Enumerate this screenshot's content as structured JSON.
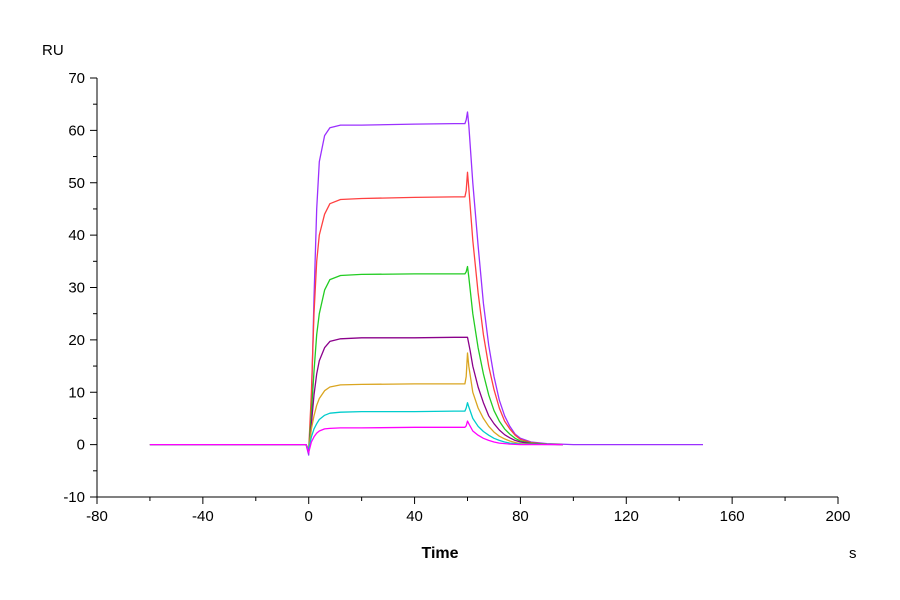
{
  "chart_data": {
    "type": "line",
    "xlabel": "Time",
    "xunit": "s",
    "yunit": "RU",
    "xlim": [
      -80,
      200
    ],
    "ylim": [
      -10,
      70
    ],
    "xticks": [
      -80,
      -40,
      0,
      40,
      80,
      120,
      160,
      200
    ],
    "yticks": [
      -10,
      0,
      10,
      20,
      30,
      40,
      50,
      60,
      70
    ],
    "grid": false,
    "legend": "none",
    "series": [
      {
        "color": "#9b30ff",
        "points": [
          [
            -60,
            0
          ],
          [
            -1,
            0
          ],
          [
            0,
            -2
          ],
          [
            1,
            8
          ],
          [
            2,
            28
          ],
          [
            3,
            45
          ],
          [
            4,
            54
          ],
          [
            6,
            59
          ],
          [
            8,
            60.5
          ],
          [
            12,
            61
          ],
          [
            20,
            61
          ],
          [
            40,
            61.2
          ],
          [
            55,
            61.3
          ],
          [
            59,
            61.3
          ],
          [
            59.5,
            62
          ],
          [
            60,
            63.5
          ],
          [
            60.5,
            61
          ],
          [
            62,
            50
          ],
          [
            64,
            38
          ],
          [
            66,
            27
          ],
          [
            68,
            19
          ],
          [
            70,
            13
          ],
          [
            72,
            8.5
          ],
          [
            74,
            5.5
          ],
          [
            76,
            3.5
          ],
          [
            78,
            2
          ],
          [
            80,
            1.2
          ],
          [
            84,
            0.5
          ],
          [
            90,
            0.2
          ],
          [
            100,
            0
          ],
          [
            149,
            0
          ]
        ]
      },
      {
        "color": "#ff4040",
        "points": [
          [
            -60,
            0
          ],
          [
            -1,
            0
          ],
          [
            0,
            -1
          ],
          [
            1,
            10
          ],
          [
            2,
            25
          ],
          [
            3,
            35
          ],
          [
            4,
            40
          ],
          [
            6,
            44
          ],
          [
            8,
            46
          ],
          [
            12,
            46.8
          ],
          [
            20,
            47
          ],
          [
            40,
            47.2
          ],
          [
            55,
            47.3
          ],
          [
            59,
            47.3
          ],
          [
            59.5,
            48.5
          ],
          [
            60,
            52
          ],
          [
            60.5,
            49
          ],
          [
            62,
            39
          ],
          [
            64,
            29
          ],
          [
            66,
            21
          ],
          [
            68,
            15
          ],
          [
            70,
            10.5
          ],
          [
            72,
            7
          ],
          [
            74,
            4.5
          ],
          [
            76,
            3
          ],
          [
            78,
            1.8
          ],
          [
            80,
            1
          ],
          [
            84,
            0.4
          ],
          [
            90,
            0.1
          ],
          [
            96,
            0
          ]
        ]
      },
      {
        "color": "#22cc22",
        "points": [
          [
            -60,
            0
          ],
          [
            -1,
            0
          ],
          [
            0,
            -1
          ],
          [
            1,
            6
          ],
          [
            2,
            14
          ],
          [
            3,
            21
          ],
          [
            4,
            25
          ],
          [
            6,
            29.5
          ],
          [
            8,
            31.5
          ],
          [
            12,
            32.3
          ],
          [
            20,
            32.5
          ],
          [
            40,
            32.6
          ],
          [
            55,
            32.6
          ],
          [
            59,
            32.6
          ],
          [
            59.5,
            33
          ],
          [
            60,
            34
          ],
          [
            60.5,
            32
          ],
          [
            62,
            25
          ],
          [
            64,
            18.5
          ],
          [
            66,
            13.5
          ],
          [
            68,
            9.5
          ],
          [
            70,
            6.5
          ],
          [
            72,
            4.5
          ],
          [
            74,
            3
          ],
          [
            76,
            2
          ],
          [
            78,
            1.2
          ],
          [
            80,
            0.7
          ],
          [
            84,
            0.3
          ],
          [
            90,
            0.1
          ],
          [
            96,
            0
          ]
        ]
      },
      {
        "color": "#8b008b",
        "points": [
          [
            -60,
            0
          ],
          [
            -1,
            0
          ],
          [
            0,
            -1.5
          ],
          [
            1,
            4
          ],
          [
            2,
            9.5
          ],
          [
            3,
            13.5
          ],
          [
            4,
            16
          ],
          [
            6,
            18.5
          ],
          [
            8,
            19.7
          ],
          [
            12,
            20.2
          ],
          [
            20,
            20.4
          ],
          [
            40,
            20.4
          ],
          [
            55,
            20.5
          ],
          [
            59,
            20.5
          ],
          [
            60,
            20.5
          ],
          [
            61,
            18
          ],
          [
            62,
            15
          ],
          [
            64,
            11
          ],
          [
            66,
            8
          ],
          [
            68,
            5.5
          ],
          [
            70,
            4
          ],
          [
            72,
            2.8
          ],
          [
            74,
            1.9
          ],
          [
            76,
            1.3
          ],
          [
            78,
            0.8
          ],
          [
            80,
            0.5
          ],
          [
            84,
            0.2
          ],
          [
            90,
            0.1
          ],
          [
            96,
            0
          ]
        ]
      },
      {
        "color": "#daa520",
        "points": [
          [
            -60,
            0
          ],
          [
            -1,
            0
          ],
          [
            0,
            -1
          ],
          [
            1,
            3
          ],
          [
            2,
            5.5
          ],
          [
            3,
            7.5
          ],
          [
            4,
            8.8
          ],
          [
            6,
            10.3
          ],
          [
            8,
            11
          ],
          [
            12,
            11.4
          ],
          [
            20,
            11.5
          ],
          [
            40,
            11.6
          ],
          [
            55,
            11.6
          ],
          [
            59,
            11.6
          ],
          [
            59.5,
            13
          ],
          [
            60,
            17.5
          ],
          [
            60.5,
            15
          ],
          [
            62,
            10
          ],
          [
            64,
            7
          ],
          [
            66,
            5
          ],
          [
            68,
            3.5
          ],
          [
            70,
            2.4
          ],
          [
            72,
            1.6
          ],
          [
            74,
            1.1
          ],
          [
            76,
            0.7
          ],
          [
            78,
            0.4
          ],
          [
            80,
            0.2
          ],
          [
            86,
            0.1
          ],
          [
            96,
            0
          ]
        ]
      },
      {
        "color": "#00cccc",
        "points": [
          [
            -60,
            0
          ],
          [
            -1,
            0
          ],
          [
            0,
            -1
          ],
          [
            1,
            1.5
          ],
          [
            2,
            3
          ],
          [
            3,
            4
          ],
          [
            4,
            4.8
          ],
          [
            6,
            5.6
          ],
          [
            8,
            6
          ],
          [
            12,
            6.2
          ],
          [
            20,
            6.3
          ],
          [
            40,
            6.3
          ],
          [
            55,
            6.4
          ],
          [
            59,
            6.4
          ],
          [
            59.5,
            7
          ],
          [
            60,
            8
          ],
          [
            60.5,
            7.2
          ],
          [
            62,
            5
          ],
          [
            64,
            3.5
          ],
          [
            66,
            2.5
          ],
          [
            68,
            1.8
          ],
          [
            70,
            1.2
          ],
          [
            72,
            0.8
          ],
          [
            74,
            0.5
          ],
          [
            76,
            0.3
          ],
          [
            80,
            0.1
          ],
          [
            96,
            0
          ]
        ]
      },
      {
        "color": "#ff00ff",
        "points": [
          [
            -60,
            0
          ],
          [
            -1,
            0
          ],
          [
            0,
            -1.5
          ],
          [
            1,
            0.5
          ],
          [
            2,
            1.5
          ],
          [
            3,
            2.2
          ],
          [
            4,
            2.6
          ],
          [
            6,
            3
          ],
          [
            8,
            3.1
          ],
          [
            12,
            3.2
          ],
          [
            20,
            3.2
          ],
          [
            40,
            3.3
          ],
          [
            55,
            3.3
          ],
          [
            59,
            3.3
          ],
          [
            59.5,
            3.6
          ],
          [
            60,
            4.5
          ],
          [
            60.5,
            4
          ],
          [
            62,
            2.6
          ],
          [
            64,
            1.8
          ],
          [
            66,
            1.2
          ],
          [
            68,
            0.8
          ],
          [
            70,
            0.5
          ],
          [
            72,
            0.3
          ],
          [
            76,
            0.1
          ],
          [
            80,
            0
          ],
          [
            96,
            0
          ]
        ]
      }
    ]
  }
}
